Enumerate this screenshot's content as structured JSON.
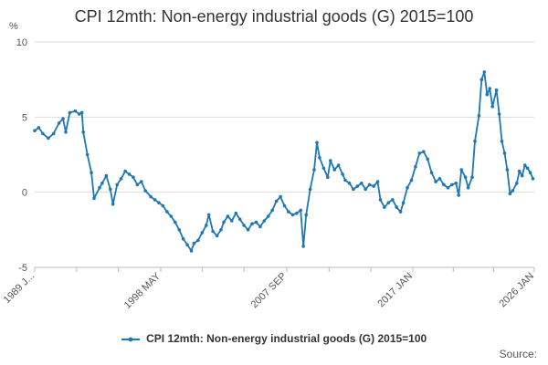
{
  "chart_data": {
    "type": "line",
    "title": "CPI 12mth: Non-energy industrial goods (G) 2015=100",
    "ylabel": "%",
    "ylim": [
      -5,
      10
    ],
    "yticks": [
      10,
      5,
      0,
      -5
    ],
    "xlim": [
      1989.0,
      2026.0
    ],
    "xtick_labels": [
      {
        "label": "1989 J...",
        "year": 1989.0
      },
      {
        "label": "1998 MAY",
        "year": 1998.33
      },
      {
        "label": "2007 SEP",
        "year": 2007.67
      },
      {
        "label": "2017 JAN",
        "year": 2017.0
      },
      {
        "label": "2026 JAN",
        "year": 2026.0
      }
    ],
    "minor_tick_years": [
      1989.0,
      1992.1,
      1995.2,
      1998.33,
      2001.4,
      2004.5,
      2007.67,
      2010.8,
      2013.9,
      2017.0,
      2020.0,
      2023.0,
      2026.0
    ],
    "series": [
      {
        "name": "CPI 12mth: Non-energy industrial goods (G) 2015=100",
        "color": "#1f77b4",
        "points": [
          [
            1989.0,
            4.1
          ],
          [
            1989.3,
            4.3
          ],
          [
            1989.6,
            3.9
          ],
          [
            1990.0,
            3.6
          ],
          [
            1990.4,
            3.9
          ],
          [
            1990.8,
            4.6
          ],
          [
            1991.1,
            4.9
          ],
          [
            1991.3,
            4.0
          ],
          [
            1991.6,
            5.3
          ],
          [
            1992.0,
            5.4
          ],
          [
            1992.3,
            5.2
          ],
          [
            1992.5,
            5.3
          ],
          [
            1992.6,
            4.0
          ],
          [
            1992.9,
            2.5
          ],
          [
            1993.2,
            1.3
          ],
          [
            1993.4,
            -0.4
          ],
          [
            1993.8,
            0.3
          ],
          [
            1994.0,
            0.6
          ],
          [
            1994.3,
            1.1
          ],
          [
            1994.6,
            0.2
          ],
          [
            1994.8,
            -0.8
          ],
          [
            1995.1,
            0.5
          ],
          [
            1995.4,
            0.9
          ],
          [
            1995.7,
            1.4
          ],
          [
            1996.0,
            1.2
          ],
          [
            1996.3,
            1.0
          ],
          [
            1996.6,
            0.5
          ],
          [
            1996.9,
            0.7
          ],
          [
            1997.2,
            0.1
          ],
          [
            1997.6,
            -0.3
          ],
          [
            1997.9,
            -0.5
          ],
          [
            1998.2,
            -0.7
          ],
          [
            1998.5,
            -0.9
          ],
          [
            1998.8,
            -1.3
          ],
          [
            1999.1,
            -1.6
          ],
          [
            1999.4,
            -2.0
          ],
          [
            1999.7,
            -2.5
          ],
          [
            2000.0,
            -3.1
          ],
          [
            2000.3,
            -3.5
          ],
          [
            2000.6,
            -3.9
          ],
          [
            2000.8,
            -3.4
          ],
          [
            2001.1,
            -3.2
          ],
          [
            2001.4,
            -2.7
          ],
          [
            2001.7,
            -2.2
          ],
          [
            2001.9,
            -1.5
          ],
          [
            2002.2,
            -2.6
          ],
          [
            2002.5,
            -2.9
          ],
          [
            2002.8,
            -2.5
          ],
          [
            2003.0,
            -2.0
          ],
          [
            2003.3,
            -1.6
          ],
          [
            2003.6,
            -1.9
          ],
          [
            2003.9,
            -1.4
          ],
          [
            2004.2,
            -1.8
          ],
          [
            2004.5,
            -2.2
          ],
          [
            2004.8,
            -2.5
          ],
          [
            2005.1,
            -2.1
          ],
          [
            2005.4,
            -2.0
          ],
          [
            2005.7,
            -2.3
          ],
          [
            2006.0,
            -1.9
          ],
          [
            2006.3,
            -1.6
          ],
          [
            2006.6,
            -1.2
          ],
          [
            2006.9,
            -0.6
          ],
          [
            2007.2,
            -0.3
          ],
          [
            2007.5,
            -0.9
          ],
          [
            2007.8,
            -1.3
          ],
          [
            2008.1,
            -1.5
          ],
          [
            2008.4,
            -1.4
          ],
          [
            2008.7,
            -1.2
          ],
          [
            2008.9,
            -3.6
          ],
          [
            2009.1,
            -1.5
          ],
          [
            2009.4,
            0.2
          ],
          [
            2009.7,
            1.5
          ],
          [
            2009.9,
            3.3
          ],
          [
            2010.1,
            2.3
          ],
          [
            2010.4,
            1.6
          ],
          [
            2010.7,
            1.0
          ],
          [
            2010.9,
            2.1
          ],
          [
            2011.2,
            1.5
          ],
          [
            2011.5,
            1.8
          ],
          [
            2011.8,
            1.2
          ],
          [
            2012.0,
            0.8
          ],
          [
            2012.3,
            0.6
          ],
          [
            2012.6,
            0.2
          ],
          [
            2012.9,
            0.4
          ],
          [
            2013.2,
            0.6
          ],
          [
            2013.5,
            0.2
          ],
          [
            2013.8,
            0.5
          ],
          [
            2014.1,
            0.4
          ],
          [
            2014.4,
            0.7
          ],
          [
            2014.6,
            -0.5
          ],
          [
            2014.9,
            -1.0
          ],
          [
            2015.2,
            -0.7
          ],
          [
            2015.5,
            -0.5
          ],
          [
            2015.8,
            -1.0
          ],
          [
            2016.1,
            -1.3
          ],
          [
            2016.3,
            -0.7
          ],
          [
            2016.6,
            0.3
          ],
          [
            2016.9,
            0.8
          ],
          [
            2017.2,
            1.7
          ],
          [
            2017.5,
            2.6
          ],
          [
            2017.8,
            2.7
          ],
          [
            2018.1,
            2.2
          ],
          [
            2018.4,
            1.3
          ],
          [
            2018.7,
            0.7
          ],
          [
            2019.0,
            0.9
          ],
          [
            2019.3,
            0.5
          ],
          [
            2019.6,
            0.3
          ],
          [
            2019.9,
            0.5
          ],
          [
            2020.2,
            0.6
          ],
          [
            2020.4,
            -0.2
          ],
          [
            2020.6,
            1.5
          ],
          [
            2020.9,
            1.0
          ],
          [
            2021.1,
            0.3
          ],
          [
            2021.4,
            1.0
          ],
          [
            2021.6,
            3.4
          ],
          [
            2021.9,
            5.1
          ],
          [
            2022.1,
            7.5
          ],
          [
            2022.3,
            8.0
          ],
          [
            2022.5,
            6.5
          ],
          [
            2022.7,
            6.9
          ],
          [
            2022.9,
            5.7
          ],
          [
            2023.2,
            6.8
          ],
          [
            2023.4,
            5.2
          ],
          [
            2023.6,
            3.4
          ],
          [
            2023.8,
            2.6
          ],
          [
            2024.0,
            1.5
          ],
          [
            2024.2,
            -0.1
          ],
          [
            2024.4,
            0.1
          ],
          [
            2024.7,
            0.6
          ],
          [
            2024.9,
            1.4
          ],
          [
            2025.1,
            1.1
          ],
          [
            2025.3,
            1.8
          ],
          [
            2025.5,
            1.6
          ],
          [
            2025.7,
            1.3
          ],
          [
            2025.9,
            0.9
          ]
        ]
      }
    ],
    "grid": true,
    "legend": "bottom"
  },
  "footer": {
    "source_label": "Source:"
  }
}
